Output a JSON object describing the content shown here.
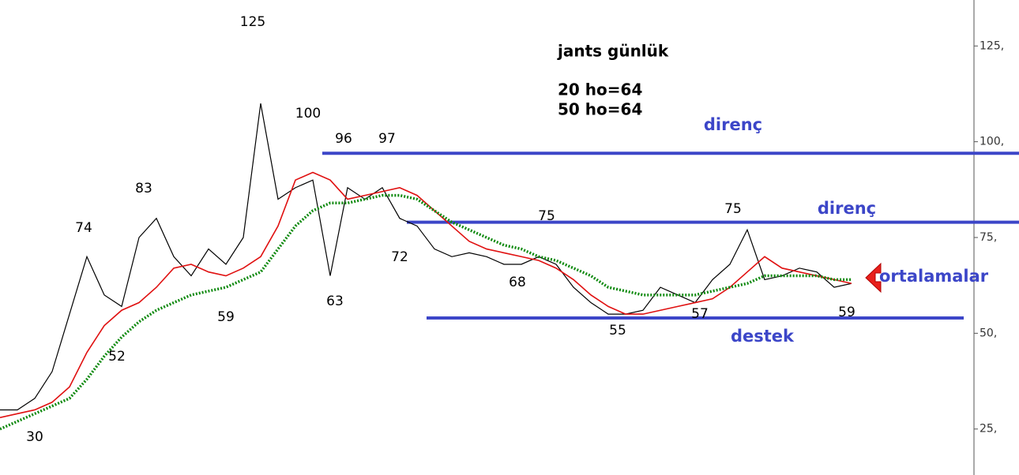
{
  "chart_data": {
    "type": "line",
    "title": "jants günlük",
    "info": [
      "20 ho=64",
      "50 ho=64"
    ],
    "series": [
      {
        "color": "#000000",
        "values": [
          30,
          30,
          33,
          40,
          55,
          70,
          60,
          57,
          75,
          80,
          70,
          65,
          72,
          68,
          75,
          110,
          85,
          88,
          90,
          65,
          88,
          85,
          88,
          80,
          78,
          72,
          70,
          71,
          70,
          68,
          68,
          70,
          68,
          62,
          58,
          55,
          55,
          56,
          62,
          60,
          58,
          64,
          68,
          77,
          64,
          65,
          67,
          66,
          62,
          63
        ]
      },
      {
        "color": "#e01010",
        "values": [
          28,
          29,
          30,
          32,
          36,
          45,
          52,
          56,
          58,
          62,
          67,
          68,
          66,
          65,
          67,
          70,
          78,
          90,
          92,
          90,
          85,
          86,
          87,
          88,
          86,
          82,
          78,
          74,
          72,
          71,
          70,
          69,
          67,
          64,
          60,
          57,
          55,
          55,
          56,
          57,
          58,
          59,
          62,
          66,
          70,
          67,
          66,
          65,
          64,
          63
        ]
      },
      {
        "color": "#108a10",
        "values": [
          25,
          27,
          29,
          31,
          33,
          38,
          44,
          49,
          53,
          56,
          58,
          60,
          61,
          62,
          64,
          66,
          72,
          78,
          82,
          84,
          84,
          85,
          86,
          86,
          85,
          82,
          79,
          77,
          75,
          73,
          72,
          70,
          69,
          67,
          65,
          62,
          61,
          60,
          60,
          60,
          60,
          61,
          62,
          63,
          65,
          65,
          65,
          65,
          64,
          64
        ]
      }
    ],
    "ylim": [
      13,
      137
    ],
    "yticks": [
      {
        "value": 125,
        "label": "125,"
      },
      {
        "value": 100,
        "label": "100,"
      },
      {
        "value": 75,
        "label": "75,"
      },
      {
        "value": 50,
        "label": "50,"
      },
      {
        "value": 25,
        "label": "25,"
      }
    ],
    "reference_lines": [
      {
        "value": 97,
        "label": "direnç",
        "color": "#3c46c8"
      },
      {
        "value": 79,
        "label": "direnç",
        "color": "#3c46c8"
      },
      {
        "value": 54,
        "label": "destek",
        "color": "#3c46c8"
      }
    ],
    "annotations": [
      "125",
      "100",
      "96",
      "97",
      "83",
      "74",
      "52",
      "59",
      "63",
      "72",
      "75",
      "68",
      "55",
      "57",
      "75",
      "59",
      "30",
      "ortalamalar"
    ]
  }
}
